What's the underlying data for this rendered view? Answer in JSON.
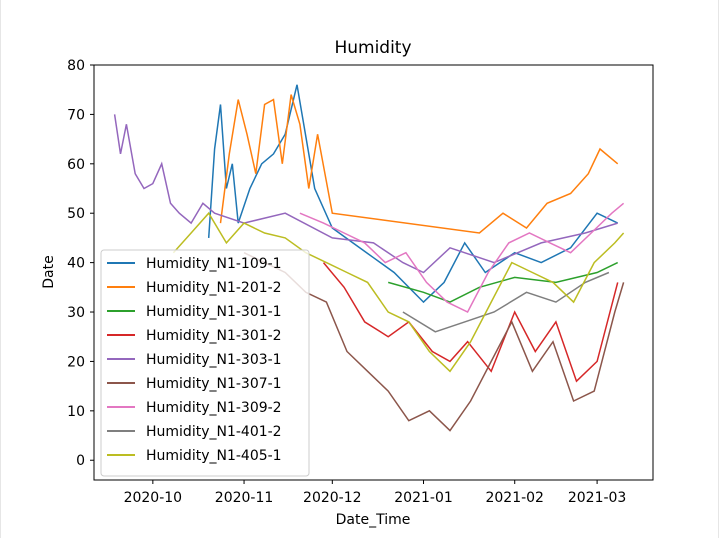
{
  "chart_data": {
    "type": "line",
    "title": "Humidity",
    "xlabel": "Date_Time",
    "ylabel": "Date",
    "xlim": [
      "2020-09-11",
      "2021-03-20"
    ],
    "ylim": [
      -4,
      80
    ],
    "x_ticks": [
      "2020-10-01",
      "2020-11-01",
      "2020-12-01",
      "2021-01-01",
      "2021-02-01",
      "2021-03-01"
    ],
    "x_tick_labels": [
      "2020-10",
      "2020-11",
      "2020-12",
      "2021-01",
      "2021-02",
      "2021-03"
    ],
    "y_ticks": [
      0,
      10,
      20,
      30,
      40,
      50,
      60,
      70,
      80
    ],
    "grid": false,
    "legend_position": "lower-left",
    "series": [
      {
        "name": "Humidity_N1-109-1",
        "color": "#1f77b4",
        "x": [
          "2020-10-20",
          "2020-10-22",
          "2020-10-24",
          "2020-10-26",
          "2020-10-28",
          "2020-10-30",
          "2020-11-03",
          "2020-11-07",
          "2020-11-11",
          "2020-11-15",
          "2020-11-19",
          "2020-11-25",
          "2020-12-01",
          "2020-12-08",
          "2020-12-15",
          "2020-12-22",
          "2021-01-01",
          "2021-01-08",
          "2021-01-15",
          "2021-01-22",
          "2021-02-01",
          "2021-02-10",
          "2021-02-20",
          "2021-03-01",
          "2021-03-08"
        ],
        "y": [
          45,
          63,
          72,
          55,
          60,
          48,
          55,
          60,
          62,
          66,
          76,
          55,
          47,
          44,
          41,
          38,
          32,
          36,
          44,
          38,
          42,
          40,
          43,
          50,
          48
        ]
      },
      {
        "name": "Humidity_N1-201-2",
        "color": "#ff7f0e",
        "x": [
          "2020-10-24",
          "2020-10-27",
          "2020-10-30",
          "2020-11-02",
          "2020-11-05",
          "2020-11-08",
          "2020-11-11",
          "2020-11-14",
          "2020-11-17",
          "2020-11-20",
          "2020-11-23",
          "2020-11-26",
          "2020-12-01",
          "2021-01-20",
          "2021-01-28",
          "2021-02-05",
          "2021-02-12",
          "2021-02-20",
          "2021-02-26",
          "2021-03-02",
          "2021-03-08"
        ],
        "y": [
          48,
          62,
          73,
          66,
          58,
          72,
          73,
          60,
          74,
          68,
          55,
          66,
          50,
          46,
          50,
          47,
          52,
          54,
          58,
          63,
          60
        ]
      },
      {
        "name": "Humidity_N1-301-1",
        "color": "#2ca02c",
        "x": [
          "2020-12-20",
          "2021-01-01",
          "2021-01-10",
          "2021-01-20",
          "2021-02-01",
          "2021-02-15",
          "2021-03-01",
          "2021-03-08"
        ],
        "y": [
          36,
          34,
          32,
          35,
          37,
          36,
          38,
          40
        ]
      },
      {
        "name": "Humidity_N1-301-2",
        "color": "#d62728",
        "x": [
          "2020-11-28",
          "2020-12-05",
          "2020-12-12",
          "2020-12-20",
          "2020-12-27",
          "2021-01-04",
          "2021-01-10",
          "2021-01-16",
          "2021-01-24",
          "2021-02-01",
          "2021-02-08",
          "2021-02-15",
          "2021-02-22",
          "2021-03-01",
          "2021-03-08"
        ],
        "y": [
          40,
          35,
          28,
          25,
          28,
          22,
          20,
          24,
          18,
          30,
          22,
          28,
          16,
          20,
          36
        ]
      },
      {
        "name": "Humidity_N1-303-1",
        "color": "#9467bd",
        "x": [
          "2020-09-18",
          "2020-09-20",
          "2020-09-22",
          "2020-09-25",
          "2020-09-28",
          "2020-10-01",
          "2020-10-04",
          "2020-10-07",
          "2020-10-10",
          "2020-10-14",
          "2020-10-18",
          "2020-10-22",
          "2020-11-01",
          "2020-11-15",
          "2020-12-01",
          "2020-12-15",
          "2020-12-25",
          "2021-01-01",
          "2021-01-10",
          "2021-01-25",
          "2021-02-10",
          "2021-02-25",
          "2021-03-08"
        ],
        "y": [
          70,
          62,
          68,
          58,
          55,
          56,
          60,
          52,
          50,
          48,
          52,
          50,
          48,
          50,
          45,
          44,
          40,
          38,
          43,
          40,
          44,
          46,
          48
        ]
      },
      {
        "name": "Humidity_N1-307-1",
        "color": "#8c564b",
        "x": [
          "2020-11-01",
          "2020-11-08",
          "2020-11-15",
          "2020-11-22",
          "2020-11-29",
          "2020-12-06",
          "2020-12-13",
          "2020-12-20",
          "2020-12-27",
          "2021-01-03",
          "2021-01-10",
          "2021-01-17",
          "2021-01-24",
          "2021-01-31",
          "2021-02-07",
          "2021-02-14",
          "2021-02-21",
          "2021-02-28",
          "2021-03-07",
          "2021-03-10"
        ],
        "y": [
          42,
          40,
          38,
          34,
          32,
          22,
          18,
          14,
          8,
          10,
          6,
          12,
          20,
          28,
          18,
          24,
          12,
          14,
          30,
          36
        ]
      },
      {
        "name": "Humidity_N1-309-2",
        "color": "#e377c2",
        "x": [
          "2020-11-20",
          "2020-11-28",
          "2020-12-05",
          "2020-12-12",
          "2020-12-19",
          "2020-12-26",
          "2021-01-02",
          "2021-01-09",
          "2021-01-16",
          "2021-01-23",
          "2021-01-30",
          "2021-02-06",
          "2021-02-13",
          "2021-02-20",
          "2021-02-27",
          "2021-03-06",
          "2021-03-10"
        ],
        "y": [
          50,
          48,
          46,
          44,
          40,
          42,
          36,
          32,
          30,
          38,
          44,
          46,
          44,
          42,
          46,
          50,
          52
        ]
      },
      {
        "name": "Humidity_N1-401-2",
        "color": "#7f7f7f",
        "x": [
          "2020-12-25",
          "2021-01-05",
          "2021-01-15",
          "2021-01-25",
          "2021-02-05",
          "2021-02-15",
          "2021-02-25",
          "2021-03-05"
        ],
        "y": [
          30,
          26,
          28,
          30,
          34,
          32,
          36,
          38
        ]
      },
      {
        "name": "Humidity_N1-405-1",
        "color": "#bcbd22",
        "x": [
          "2020-10-08",
          "2020-10-14",
          "2020-10-20",
          "2020-10-26",
          "2020-11-01",
          "2020-11-08",
          "2020-11-15",
          "2020-11-22",
          "2020-11-29",
          "2020-12-06",
          "2020-12-13",
          "2020-12-20",
          "2020-12-27",
          "2021-01-03",
          "2021-01-10",
          "2021-01-17",
          "2021-01-24",
          "2021-01-31",
          "2021-02-07",
          "2021-02-14",
          "2021-02-21",
          "2021-02-28",
          "2021-03-07",
          "2021-03-10"
        ],
        "y": [
          42,
          46,
          50,
          44,
          48,
          46,
          45,
          42,
          40,
          38,
          36,
          30,
          28,
          22,
          18,
          24,
          32,
          40,
          38,
          36,
          32,
          40,
          44,
          46
        ]
      }
    ]
  }
}
